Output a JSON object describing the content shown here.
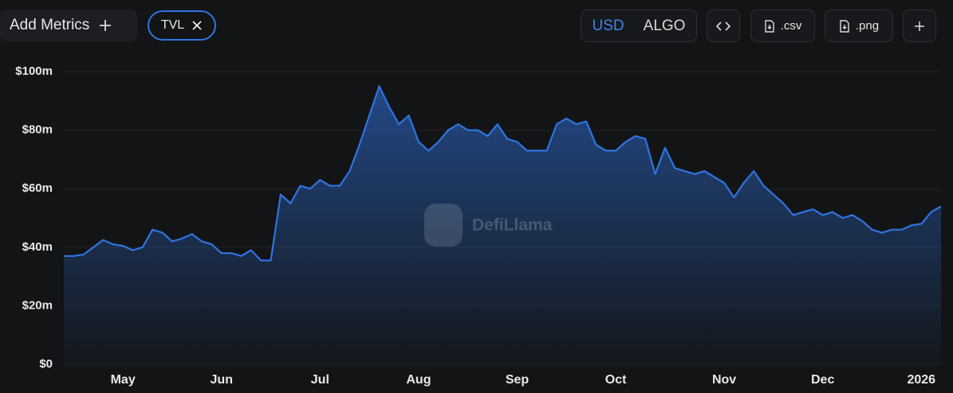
{
  "toolbar": {
    "add_metrics": "Add Metrics",
    "metric": "TVL",
    "currencies": [
      "USD",
      "ALGO"
    ],
    "csv": ".csv",
    "png": ".png"
  },
  "watermark": "DefiLlama",
  "chart_data": {
    "type": "area",
    "color": "#2f74e0",
    "categories": [
      null,
      null,
      null,
      null,
      null,
      null,
      "May",
      null,
      null,
      null,
      null,
      null,
      null,
      null,
      null,
      null,
      "Jun",
      null,
      null,
      null,
      null,
      null,
      null,
      null,
      null,
      null,
      "Jul",
      null,
      null,
      null,
      null,
      null,
      null,
      null,
      null,
      null,
      "Aug",
      null,
      null,
      null,
      null,
      null,
      null,
      null,
      null,
      null,
      "Sep",
      null,
      null,
      null,
      null,
      null,
      null,
      null,
      null,
      null,
      "Oct",
      null,
      null,
      null,
      null,
      null,
      null,
      null,
      null,
      null,
      null,
      "Nov",
      null,
      null,
      null,
      null,
      null,
      null,
      null,
      null,
      null,
      "Dec",
      null,
      null,
      null,
      null,
      null,
      null,
      null,
      null,
      null,
      "2026",
      null,
      null
    ],
    "values": [
      37,
      37,
      37.5,
      40,
      42.5,
      41,
      40.5,
      39,
      40,
      46,
      45,
      42,
      43,
      44.5,
      42,
      41,
      38,
      38,
      37,
      39,
      35.5,
      35.5,
      58,
      55,
      61,
      60,
      63,
      61,
      61,
      66,
      75,
      85,
      95,
      88,
      82,
      85,
      76,
      73,
      76,
      80,
      82,
      80,
      80,
      78,
      82,
      77,
      76,
      73,
      73,
      73,
      82,
      84,
      82,
      83,
      75,
      73,
      73,
      76,
      78,
      77,
      65,
      74,
      67,
      66,
      65,
      66,
      64,
      62,
      57,
      62,
      66,
      61,
      58,
      55,
      51,
      52,
      53,
      51,
      52,
      50,
      51,
      49,
      46,
      45,
      46,
      46,
      47.5,
      48,
      52,
      54
    ],
    "ylim": [
      0,
      100
    ],
    "yticks": [
      {
        "value": 0,
        "label": "$0"
      },
      {
        "value": 20,
        "label": "$20m"
      },
      {
        "value": 40,
        "label": "$40m"
      },
      {
        "value": 60,
        "label": "$60m"
      },
      {
        "value": 80,
        "label": "$80m"
      },
      {
        "value": 100,
        "label": "$100m"
      }
    ],
    "grid": true
  }
}
